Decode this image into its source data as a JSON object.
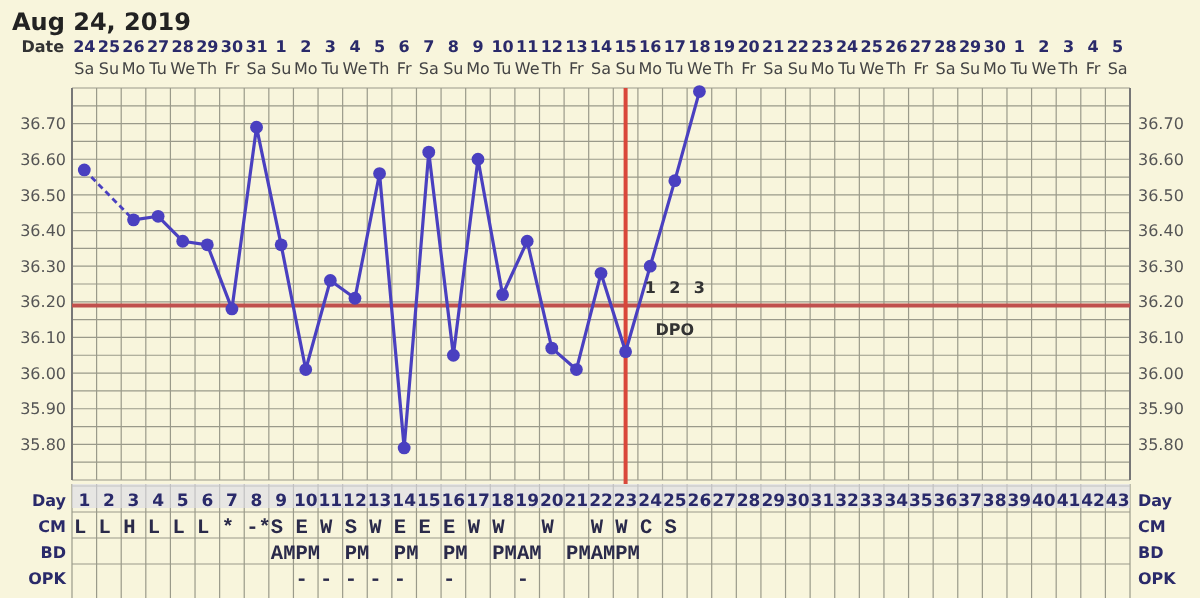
{
  "chart_data": {
    "type": "line",
    "title": "Aug 24, 2019",
    "xlabel": "Date",
    "x2label": "Day",
    "categories": [
      "24 Sa",
      "25 Su",
      "26 Mo",
      "27 Tu",
      "28 We",
      "29 Th",
      "30 Fr",
      "31 Sa",
      "1 Su",
      "2 Mo",
      "3 Tu",
      "4 We",
      "5 Th",
      "6 Fr",
      "7 Sa",
      "8 Su",
      "9 Mo",
      "10 Tu",
      "11 We",
      "12 Th",
      "13 Fr",
      "14 Sa",
      "15 Su",
      "16 Mo",
      "17 Tu",
      "18 We",
      "19 Th",
      "20 Fr",
      "21 Sa",
      "22 Su",
      "23 Mo",
      "24 Tu",
      "25 We",
      "26 Th",
      "27 Fr",
      "28 Sa",
      "29 Su",
      "30 Mo",
      "1 Tu",
      "2 We",
      "3 Th",
      "4 Fr",
      "5 Sa"
    ],
    "series": [
      {
        "color": "#4a40c0",
        "values": [
          36.57,
          null,
          36.43,
          36.44,
          36.37,
          36.36,
          36.18,
          36.69,
          36.36,
          36.01,
          36.26,
          36.21,
          36.56,
          35.79,
          36.62,
          36.05,
          36.6,
          36.22,
          36.37,
          36.07,
          36.01,
          36.28,
          36.06,
          36.3,
          36.54,
          36.79,
          null,
          null,
          null,
          null,
          null,
          null,
          null,
          null,
          null,
          null,
          null,
          null,
          null,
          null,
          null,
          null,
          null
        ]
      }
    ],
    "ylim": [
      35.7,
      36.8
    ],
    "yticks": [
      {
        "value": 35.8,
        "label": "35.80"
      },
      {
        "value": 35.9,
        "label": "35.90"
      },
      {
        "value": 36.0,
        "label": "36.00"
      },
      {
        "value": 36.1,
        "label": "36.10"
      },
      {
        "value": 36.2,
        "label": "36.20"
      },
      {
        "value": 36.3,
        "label": "36.30"
      },
      {
        "value": 36.4,
        "label": "36.40"
      },
      {
        "value": 36.5,
        "label": "36.50"
      },
      {
        "value": 36.6,
        "label": "36.60"
      },
      {
        "value": 36.7,
        "label": "36.70"
      }
    ],
    "y2lim": [
      35.7,
      36.8
    ],
    "y2ticks": [
      {
        "value": 35.8,
        "label": "35.80"
      },
      {
        "value": 35.9,
        "label": "35.90"
      },
      {
        "value": 36.0,
        "label": "36.00"
      },
      {
        "value": 36.1,
        "label": "36.10"
      },
      {
        "value": 36.2,
        "label": "36.20"
      },
      {
        "value": 36.3,
        "label": "36.30"
      },
      {
        "value": 36.4,
        "label": "36.40"
      },
      {
        "value": 36.5,
        "label": "36.50"
      },
      {
        "value": 36.6,
        "label": "36.60"
      },
      {
        "value": 36.7,
        "label": "36.70"
      }
    ],
    "x2lim": [
      0.5,
      43.5
    ],
    "x2ticks": [
      1,
      2,
      3,
      4,
      5,
      6,
      7,
      8,
      9,
      10,
      11,
      12,
      13,
      14,
      15,
      16,
      17,
      18,
      19,
      20,
      21,
      22,
      23,
      24,
      25,
      26,
      27,
      28,
      29,
      30,
      31,
      32,
      33,
      34,
      35,
      36,
      37,
      38,
      39,
      40,
      41,
      42,
      43
    ],
    "ref_lines": [
      {
        "axis": "y",
        "value": 36.19,
        "color": "#c0504d"
      },
      {
        "axis": "x",
        "value": "15 Su",
        "color": "#d9473a"
      }
    ],
    "grid": true,
    "marker": "circle",
    "line_style": "solid",
    "annotations": [
      "1",
      "2",
      "3",
      "DPO",
      "CM",
      "L L H L L L * -*S E W S W E E E W W   W   W W C S",
      "BD",
      "                AMPM  PM  PM  PM  PMAM  PMAMPM",
      "OPK",
      "                  - - - - -   -     -"
    ]
  }
}
